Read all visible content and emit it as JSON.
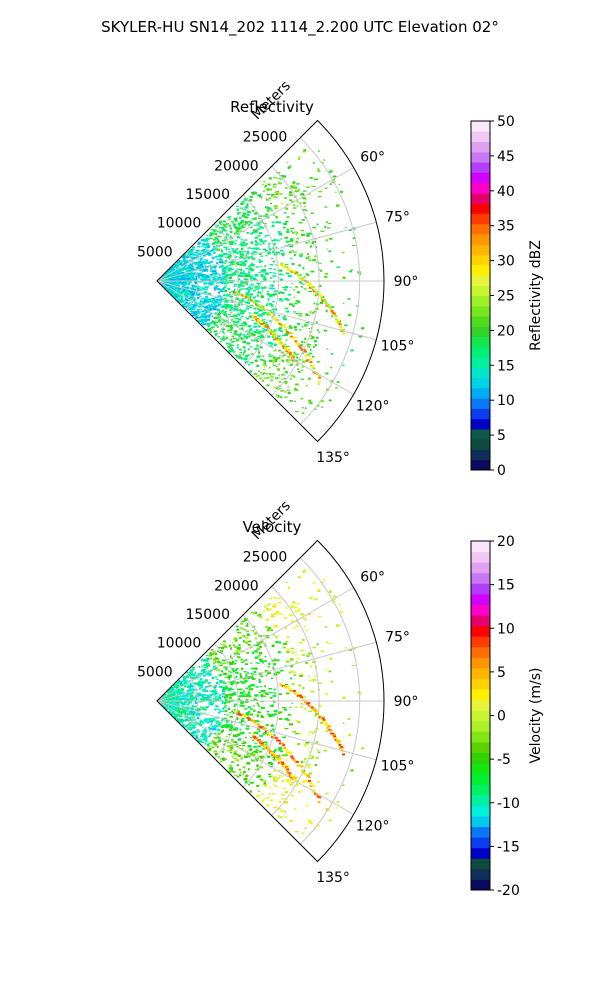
{
  "figure_title": "SKYLER-HU  SN14_202  1114_2.200 UTC Elevation 02°",
  "colors": {
    "grid": "#c8c8c8",
    "axis": "#000000",
    "refl_scale": [
      "#0b0b5e",
      "#10305a",
      "#0f4a3e",
      "#0b5a4a",
      "#0000c8",
      "#0a3cf0",
      "#0a78f5",
      "#00aaf5",
      "#00d2e6",
      "#00e6c8",
      "#00f0a0",
      "#00f078",
      "#14e650",
      "#32d228",
      "#50dc1e",
      "#78e61e",
      "#a0f028",
      "#c8f532",
      "#e6f53c",
      "#fff000",
      "#ffd200",
      "#ffb400",
      "#ff9600",
      "#ff6e00",
      "#ff3c00",
      "#ff0000",
      "#e6006e",
      "#ff00c8",
      "#d200ff",
      "#b43cff",
      "#c878f5",
      "#e0a0f0",
      "#f0c8f5",
      "#fae6fa"
    ],
    "vel_scale": [
      "#0b0b5e",
      "#10305a",
      "#0f4a3e",
      "#0000c8",
      "#0a3cf0",
      "#0a78f5",
      "#00c8f0",
      "#00f0dc",
      "#00f0a0",
      "#00f064",
      "#00f032",
      "#14e614",
      "#32d200",
      "#5ad200",
      "#82e614",
      "#aaf028",
      "#c8f532",
      "#e6f53c",
      "#fff000",
      "#ffd200",
      "#ffb400",
      "#ff9600",
      "#ff6e00",
      "#ff3c00",
      "#ff0000",
      "#e6006e",
      "#ff00c8",
      "#d200ff",
      "#b43cff",
      "#c878f5",
      "#e0a0f0",
      "#f0c8f5",
      "#fae6fa"
    ]
  },
  "chart_data": [
    {
      "type": "polar",
      "title": "Reflectivity",
      "radial_label": "Meters",
      "radial_ticks": [
        5000,
        10000,
        15000,
        20000,
        25000
      ],
      "radial_tick_labels": [
        "5000",
        "10000",
        "15000",
        "20000",
        "25000"
      ],
      "rlim": [
        0,
        28000
      ],
      "theta_range_deg": [
        45,
        135
      ],
      "theta_ticks": [
        60,
        75,
        90,
        105,
        120,
        135
      ],
      "theta_tick_labels": [
        "60°",
        "75°",
        "90°",
        "105°",
        "120°",
        "135°"
      ],
      "grid": true,
      "colorbar": {
        "label": "Reflectivity dBZ",
        "range": [
          0,
          50
        ],
        "ticks": [
          0,
          5,
          10,
          15,
          20,
          25,
          30,
          35,
          40,
          45,
          50
        ],
        "tick_labels": [
          "0",
          "5",
          "10",
          "15",
          "20",
          "25",
          "30",
          "35",
          "40",
          "45",
          "50"
        ]
      },
      "field_summary": {
        "near_range_value": 13,
        "mid_range_value": 17,
        "far_range_value": 20,
        "streak_values": [
          24,
          28,
          35
        ]
      }
    },
    {
      "type": "polar",
      "title": "Velocity",
      "radial_label": "Meters",
      "radial_ticks": [
        5000,
        10000,
        15000,
        20000,
        25000
      ],
      "radial_tick_labels": [
        "5000",
        "10000",
        "15000",
        "20000",
        "25000"
      ],
      "rlim": [
        0,
        28000
      ],
      "theta_range_deg": [
        45,
        135
      ],
      "theta_ticks": [
        60,
        75,
        90,
        105,
        120,
        135
      ],
      "theta_tick_labels": [
        "60°",
        "75°",
        "90°",
        "105°",
        "120°",
        "135°"
      ],
      "grid": true,
      "colorbar": {
        "label": "Velocity (m/s)",
        "range": [
          -20,
          20
        ],
        "ticks": [
          -20,
          -15,
          -10,
          -5,
          0,
          5,
          10,
          15,
          20
        ],
        "tick_labels": [
          "-20",
          "-15",
          "-10",
          "-5",
          "0",
          "5",
          "10",
          "15",
          "20"
        ]
      },
      "field_summary": {
        "near_range_value": -10,
        "mid_range_value": -6,
        "far_range_value": -1,
        "streak_values": [
          2,
          5,
          8
        ]
      }
    }
  ]
}
